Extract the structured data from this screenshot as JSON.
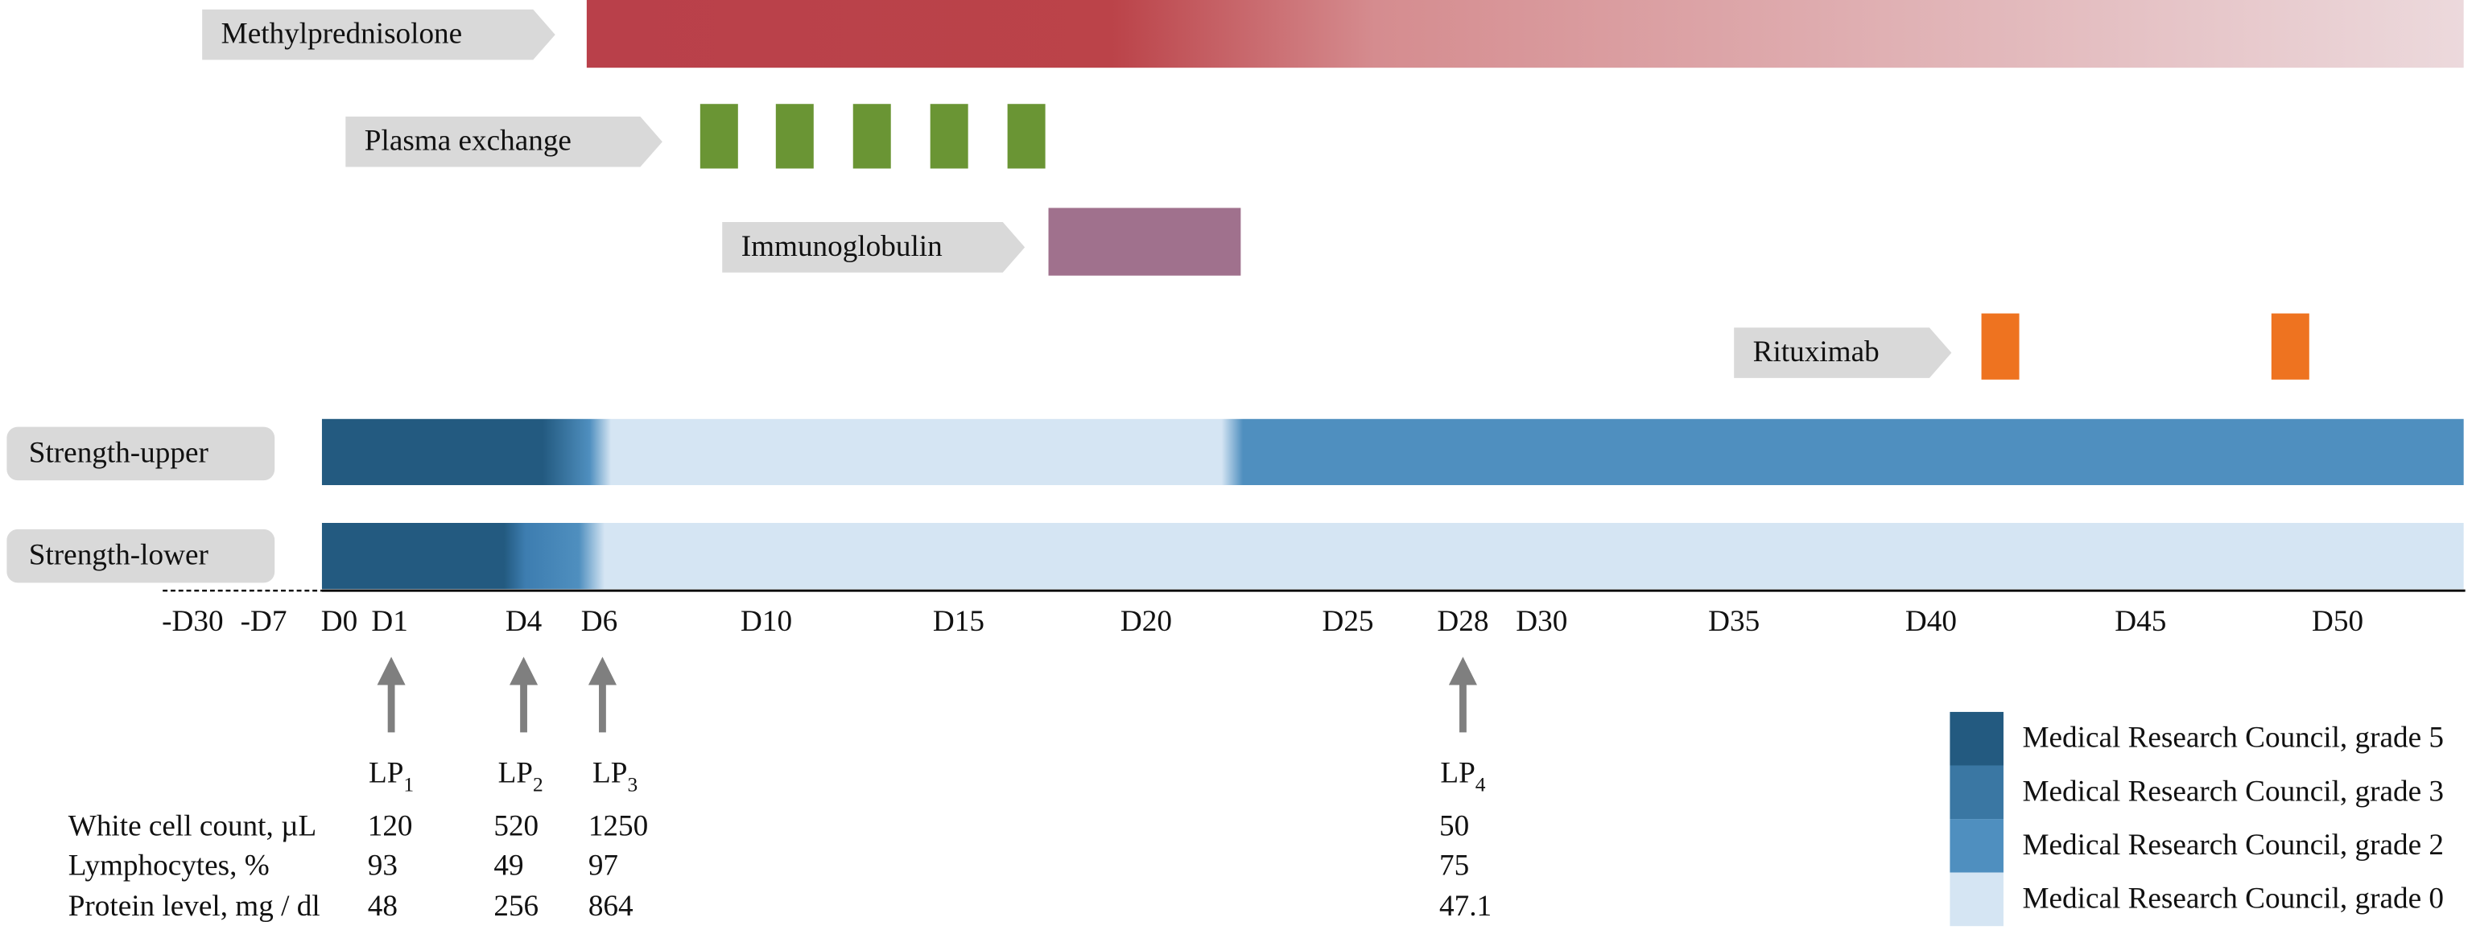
{
  "treatments": [
    {
      "label": "Methylprednisolone"
    },
    {
      "label": "Plasma exchange"
    },
    {
      "label": "Immunoglobulin"
    },
    {
      "label": "Rituximab"
    }
  ],
  "strength": [
    {
      "label": "Strength-upper"
    },
    {
      "label": "Strength-lower"
    }
  ],
  "days": [
    "-D30",
    "-D7",
    "D0",
    "D1",
    "D4",
    "D6",
    "D10",
    "D15",
    "D20",
    "D25",
    "D28",
    "D30",
    "D35",
    "D40",
    "D45",
    "D50"
  ],
  "lumbar_punctures": [
    {
      "label": "LP",
      "subscript": "1"
    },
    {
      "label": "LP",
      "subscript": "2"
    },
    {
      "label": "LP",
      "subscript": "3"
    },
    {
      "label": "LP",
      "subscript": "4"
    }
  ],
  "table": {
    "rows": [
      {
        "label": "White cell count, µL",
        "values": [
          "120",
          "520",
          "1250",
          "50"
        ]
      },
      {
        "label": "Lymphocytes, %",
        "values": [
          "93",
          "49",
          "97",
          "75"
        ]
      },
      {
        "label": "Protein level, mg / dl",
        "values": [
          "48",
          "256",
          "864",
          "47.1"
        ]
      }
    ]
  },
  "legend": [
    {
      "label": "Medical Research Council, grade 5",
      "color": "#235a80"
    },
    {
      "label": "Medical Research Council, grade 3",
      "color": "#3a77a3"
    },
    {
      "label": "Medical Research Council, grade 2",
      "color": "#4f8fbf"
    },
    {
      "label": "Medical Research Council, grade 0",
      "color": "#d5e5f3"
    }
  ]
}
